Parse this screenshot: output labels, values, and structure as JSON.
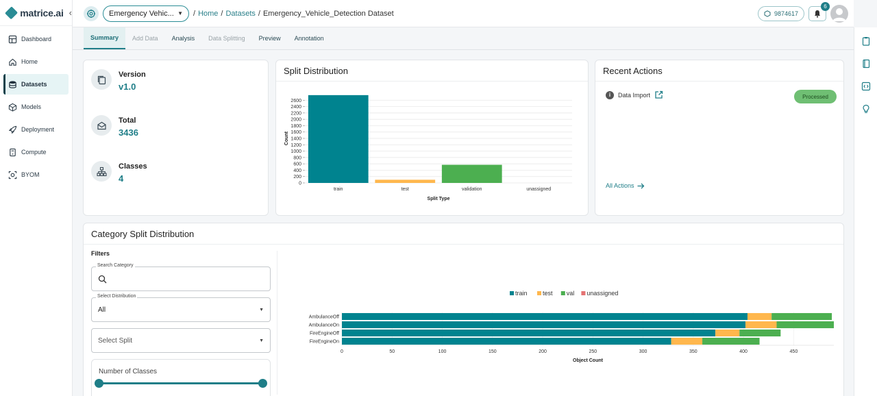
{
  "brand": {
    "name": "matrice.ai",
    "collapse_icon": "chevron-left-icon"
  },
  "sidebar": {
    "items": [
      {
        "label": "Dashboard",
        "icon": "dashboard-icon"
      },
      {
        "label": "Home",
        "icon": "home-icon"
      },
      {
        "label": "Datasets",
        "icon": "database-icon",
        "active": true
      },
      {
        "label": "Models",
        "icon": "cube-icon"
      },
      {
        "label": "Deployment",
        "icon": "rocket-icon"
      },
      {
        "label": "Compute",
        "icon": "server-icon"
      },
      {
        "label": "BYOM",
        "icon": "byom-icon"
      }
    ]
  },
  "header": {
    "project": "Emergency Vehic...",
    "breadcrumb": [
      "Home",
      "Datasets",
      "Emergency_Vehicle_Detection Dataset"
    ],
    "separator": "/",
    "credits": "9874617",
    "notification_count": "6"
  },
  "tabs": [
    {
      "label": "Summary",
      "state": "active"
    },
    {
      "label": "Add Data",
      "state": "disabled"
    },
    {
      "label": "Analysis",
      "state": "normal"
    },
    {
      "label": "Data Splitting",
      "state": "disabled"
    },
    {
      "label": "Preview",
      "state": "normal"
    },
    {
      "label": "Annotation",
      "state": "normal"
    }
  ],
  "summary": {
    "version_label": "Version",
    "version_value": "v1.0",
    "total_label": "Total",
    "total_value": "3436",
    "classes_label": "Classes",
    "classes_value": "4"
  },
  "split_card": {
    "title": "Split Distribution"
  },
  "recent_actions": {
    "title": "Recent Actions",
    "items": [
      {
        "label": "Data Import",
        "status": "Processed"
      }
    ],
    "all_actions": "All Actions"
  },
  "category_card": {
    "title": "Category Split Distribution",
    "filters_title": "Filters",
    "search_label": "Search Category",
    "search_value": "",
    "distribution_label": "Select Distribution",
    "distribution_value": "All",
    "split_placeholder": "Select Split",
    "slider_label": "Number of Classes"
  },
  "colors": {
    "accent": "#1f7e88",
    "train": "#00838f",
    "test": "#ffb74d",
    "val": "#4caf50",
    "unassigned": "#e57373"
  },
  "chart_data": [
    {
      "type": "bar",
      "categories": [
        "train",
        "test",
        "validation",
        "unassigned"
      ],
      "values": [
        2760,
        100,
        570,
        0
      ],
      "colors": [
        "#00838f",
        "#ffb74d",
        "#4caf50",
        "#e57373"
      ],
      "xlabel": "Split Type",
      "ylabel": "Count",
      "ylim": [
        0,
        2800
      ],
      "yticks": [
        0,
        200,
        400,
        600,
        800,
        1000,
        1200,
        1400,
        1600,
        1800,
        2000,
        2200,
        2400,
        2600
      ],
      "grid": true
    },
    {
      "type": "bar",
      "orientation": "horizontal",
      "stacked": true,
      "categories": [
        "AmbulanceOff",
        "AmbulanceOn",
        "FireEngineOff",
        "FireEngineOn"
      ],
      "series": [
        {
          "name": "train",
          "color": "#00838f",
          "values": [
            404,
            402,
            372,
            328
          ]
        },
        {
          "name": "test",
          "color": "#ffb74d",
          "values": [
            24,
            31,
            24,
            31
          ]
        },
        {
          "name": "val",
          "color": "#4caf50",
          "values": [
            60,
            57,
            41,
            57
          ]
        },
        {
          "name": "unassigned",
          "color": "#e57373",
          "values": [
            0,
            0,
            0,
            0
          ]
        }
      ],
      "xlabel": "Object Count",
      "xlim": [
        0,
        490
      ],
      "xticks": [
        0,
        50,
        100,
        150,
        200,
        250,
        300,
        350,
        400,
        450
      ],
      "legend": "top-center",
      "grid": true
    }
  ]
}
